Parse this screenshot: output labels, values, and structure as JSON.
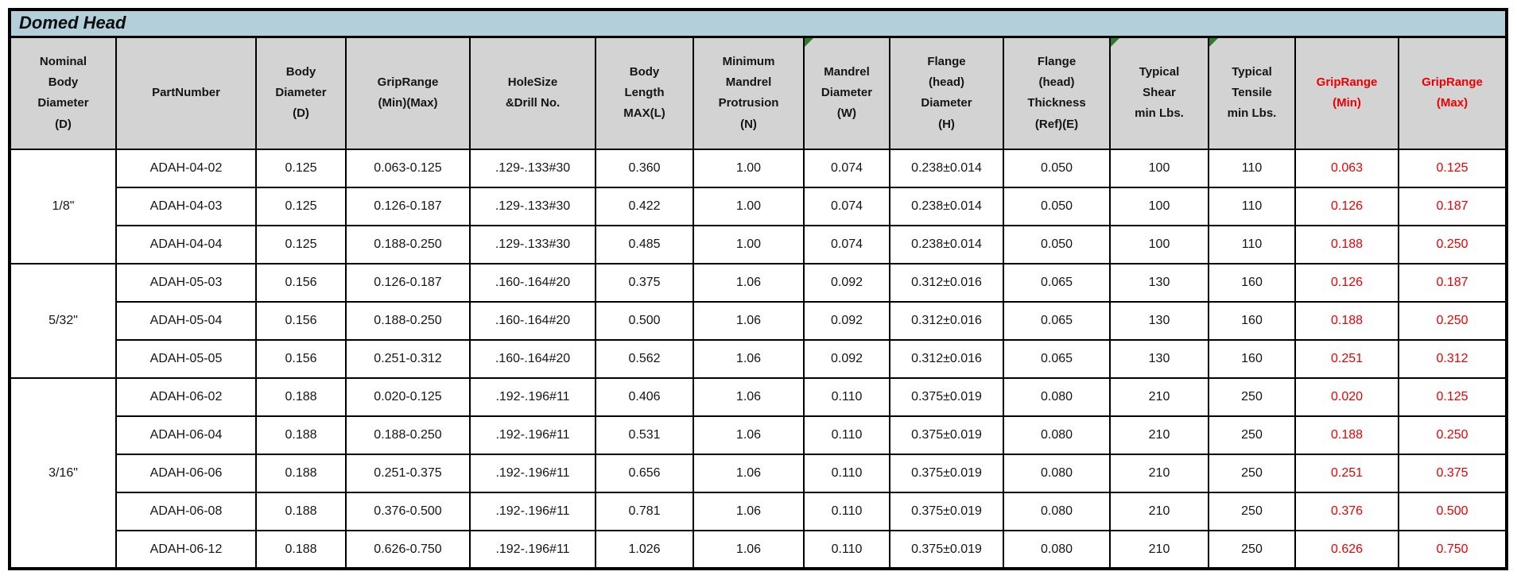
{
  "title": "Domed Head",
  "colors": {
    "title_bar_bg": "#b2cfda",
    "header_bg": "#d3d3d3",
    "grip_range_red": "#ee0000",
    "cell_flag_green": "#2b7d2b",
    "border": "#000000"
  },
  "icons": {
    "cell_flag": "green-corner-triangle"
  },
  "table": {
    "columns": [
      {
        "key": "nominal",
        "label": "Nominal\nBody\nDiameter\n(D)",
        "red": false,
        "marker": false
      },
      {
        "key": "part_number",
        "label": "PartNumber",
        "red": false,
        "marker": false
      },
      {
        "key": "body_diameter",
        "label": "Body\nDiameter\n(D)",
        "red": false,
        "marker": false
      },
      {
        "key": "grip_range",
        "label": "GripRange\n(Min)(Max)",
        "red": false,
        "marker": false
      },
      {
        "key": "hole_size",
        "label": "HoleSize\n&Drill No.",
        "red": false,
        "marker": false
      },
      {
        "key": "body_length_max",
        "label": "Body\nLength\nMAX(L)",
        "red": false,
        "marker": false
      },
      {
        "key": "min_mandrel_protrusion",
        "label": "Minimum\nMandrel\nProtrusion\n(N)",
        "red": false,
        "marker": false
      },
      {
        "key": "mandrel_diameter",
        "label": "Mandrel\nDiameter\n(W)",
        "red": false,
        "marker": true
      },
      {
        "key": "flange_diameter",
        "label": "Flange\n(head)\nDiameter\n(H)",
        "red": false,
        "marker": false
      },
      {
        "key": "flange_thickness",
        "label": "Flange\n(head)\nThickness\n(Ref)(E)",
        "red": false,
        "marker": false
      },
      {
        "key": "typical_shear",
        "label": "Typical\nShear\nmin Lbs.",
        "red": false,
        "marker": true
      },
      {
        "key": "typical_tensile",
        "label": "Typical\nTensile\nmin Lbs.",
        "red": false,
        "marker": true
      },
      {
        "key": "grip_min",
        "label": "GripRange\n(Min)",
        "red": true,
        "marker": false
      },
      {
        "key": "grip_max",
        "label": "GripRange\n(Max)",
        "red": true,
        "marker": false
      }
    ],
    "groups": [
      {
        "nominal": "1/8\"",
        "rows": [
          {
            "part_number": "ADAH-04-02",
            "body_diameter": "0.125",
            "grip_range": "0.063-0.125",
            "hole_size": ".129-.133#30",
            "body_length_max": "0.360",
            "min_mandrel_protrusion": "1.00",
            "mandrel_diameter": "0.074",
            "flange_diameter": "0.238±0.014",
            "flange_thickness": "0.050",
            "typical_shear": "100",
            "typical_tensile": "110",
            "grip_min": "0.063",
            "grip_max": "0.125"
          },
          {
            "part_number": "ADAH-04-03",
            "body_diameter": "0.125",
            "grip_range": "0.126-0.187",
            "hole_size": ".129-.133#30",
            "body_length_max": "0.422",
            "min_mandrel_protrusion": "1.00",
            "mandrel_diameter": "0.074",
            "flange_diameter": "0.238±0.014",
            "flange_thickness": "0.050",
            "typical_shear": "100",
            "typical_tensile": "110",
            "grip_min": "0.126",
            "grip_max": "0.187"
          },
          {
            "part_number": "ADAH-04-04",
            "body_diameter": "0.125",
            "grip_range": "0.188-0.250",
            "hole_size": ".129-.133#30",
            "body_length_max": "0.485",
            "min_mandrel_protrusion": "1.00",
            "mandrel_diameter": "0.074",
            "flange_diameter": "0.238±0.014",
            "flange_thickness": "0.050",
            "typical_shear": "100",
            "typical_tensile": "110",
            "grip_min": "0.188",
            "grip_max": "0.250"
          }
        ]
      },
      {
        "nominal": "5/32\"",
        "rows": [
          {
            "part_number": "ADAH-05-03",
            "body_diameter": "0.156",
            "grip_range": "0.126-0.187",
            "hole_size": ".160-.164#20",
            "body_length_max": "0.375",
            "min_mandrel_protrusion": "1.06",
            "mandrel_diameter": "0.092",
            "flange_diameter": "0.312±0.016",
            "flange_thickness": "0.065",
            "typical_shear": "130",
            "typical_tensile": "160",
            "grip_min": "0.126",
            "grip_max": "0.187"
          },
          {
            "part_number": "ADAH-05-04",
            "body_diameter": "0.156",
            "grip_range": "0.188-0.250",
            "hole_size": ".160-.164#20",
            "body_length_max": "0.500",
            "min_mandrel_protrusion": "1.06",
            "mandrel_diameter": "0.092",
            "flange_diameter": "0.312±0.016",
            "flange_thickness": "0.065",
            "typical_shear": "130",
            "typical_tensile": "160",
            "grip_min": "0.188",
            "grip_max": "0.250"
          },
          {
            "part_number": "ADAH-05-05",
            "body_diameter": "0.156",
            "grip_range": "0.251-0.312",
            "hole_size": ".160-.164#20",
            "body_length_max": "0.562",
            "min_mandrel_protrusion": "1.06",
            "mandrel_diameter": "0.092",
            "flange_diameter": "0.312±0.016",
            "flange_thickness": "0.065",
            "typical_shear": "130",
            "typical_tensile": "160",
            "grip_min": "0.251",
            "grip_max": "0.312"
          }
        ]
      },
      {
        "nominal": "3/16\"",
        "rows": [
          {
            "part_number": "ADAH-06-02",
            "body_diameter": "0.188",
            "grip_range": "0.020-0.125",
            "hole_size": ".192-.196#11",
            "body_length_max": "0.406",
            "min_mandrel_protrusion": "1.06",
            "mandrel_diameter": "0.110",
            "flange_diameter": "0.375±0.019",
            "flange_thickness": "0.080",
            "typical_shear": "210",
            "typical_tensile": "250",
            "grip_min": "0.020",
            "grip_max": "0.125"
          },
          {
            "part_number": "ADAH-06-04",
            "body_diameter": "0.188",
            "grip_range": "0.188-0.250",
            "hole_size": ".192-.196#11",
            "body_length_max": "0.531",
            "min_mandrel_protrusion": "1.06",
            "mandrel_diameter": "0.110",
            "flange_diameter": "0.375±0.019",
            "flange_thickness": "0.080",
            "typical_shear": "210",
            "typical_tensile": "250",
            "grip_min": "0.188",
            "grip_max": "0.250"
          },
          {
            "part_number": "ADAH-06-06",
            "body_diameter": "0.188",
            "grip_range": "0.251-0.375",
            "hole_size": ".192-.196#11",
            "body_length_max": "0.656",
            "min_mandrel_protrusion": "1.06",
            "mandrel_diameter": "0.110",
            "flange_diameter": "0.375±0.019",
            "flange_thickness": "0.080",
            "typical_shear": "210",
            "typical_tensile": "250",
            "grip_min": "0.251",
            "grip_max": "0.375"
          },
          {
            "part_number": "ADAH-06-08",
            "body_diameter": "0.188",
            "grip_range": "0.376-0.500",
            "hole_size": ".192-.196#11",
            "body_length_max": "0.781",
            "min_mandrel_protrusion": "1.06",
            "mandrel_diameter": "0.110",
            "flange_diameter": "0.375±0.019",
            "flange_thickness": "0.080",
            "typical_shear": "210",
            "typical_tensile": "250",
            "grip_min": "0.376",
            "grip_max": "0.500"
          },
          {
            "part_number": "ADAH-06-12",
            "body_diameter": "0.188",
            "grip_range": "0.626-0.750",
            "hole_size": ".192-.196#11",
            "body_length_max": "1.026",
            "min_mandrel_protrusion": "1.06",
            "mandrel_diameter": "0.110",
            "flange_diameter": "0.375±0.019",
            "flange_thickness": "0.080",
            "typical_shear": "210",
            "typical_tensile": "250",
            "grip_min": "0.626",
            "grip_max": "0.750"
          }
        ]
      }
    ]
  }
}
